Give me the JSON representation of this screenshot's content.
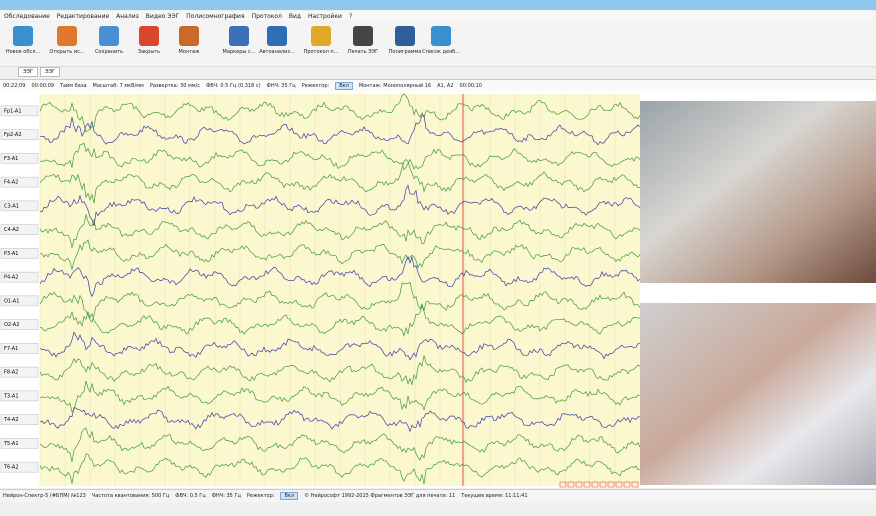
{
  "menu": [
    "Обследование",
    "Редактирование",
    "Анализ",
    "Видео ЭЭГ",
    "Полисомнография",
    "Протокол",
    "Вид",
    "Настройки",
    "?"
  ],
  "toolbar": [
    "Новое обсл...",
    "Открыть ис...",
    "Сохранить",
    "Закрыть",
    "Монтаж",
    "Маркеры с...",
    "Автоанализ...",
    "Протокол п...",
    "Печать ЭЭГ",
    "Полиграмма",
    "Список деяб..."
  ],
  "tabs": [
    "ЭЭГ",
    "ЭЭГ"
  ],
  "info": [
    "00:22:09",
    "00:00:09",
    "Тайм база",
    "Масштаб: 7 мкВ/мм",
    "Развертка: 30 мм/с",
    "ФВЧ: 0.5 Гц (0.318 с)",
    "ФНЧ: 35 Гц",
    "Режектор:",
    "Вкл",
    "Монтаж: Монополярный 16",
    "A1, A2",
    "00:00:10"
  ],
  "channels": [
    "Fp1-A1",
    "Fp2-A2",
    "F3-A1",
    "F4-A2",
    "C3-A1",
    "C4-A2",
    "P3-A1",
    "P4-A2",
    "O1-A1",
    "O2-A2",
    "F7-A1",
    "F8-A2",
    "T3-A1",
    "T4-A2",
    "T5-A1",
    "T6-A2"
  ],
  "status": [
    "Нейрон-Спектр-5 (#БПМ) №123",
    "Частота квантования: 500 Гц",
    "ФВЧ: 0.5 Гц",
    "ФНЧ: 35 Гц",
    "Режектор:",
    "Вкл",
    "© Нейрософт 1992-2015 Фрагментов ЭЭГ для печати: 11",
    "Текущее время: 11:11:41"
  ]
}
